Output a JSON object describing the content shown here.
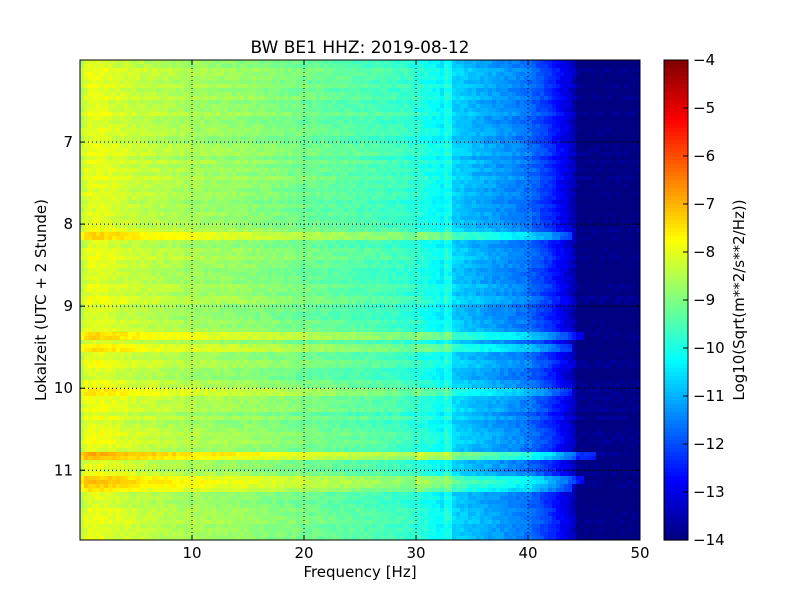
{
  "chart_data": {
    "type": "heatmap",
    "title": "BW BE1 HHZ: 2019-08-12",
    "xlabel": "Frequency [Hz]",
    "ylabel": "Lokalzeit (UTC + 2 Stunde)",
    "xlim": [
      0,
      50
    ],
    "ylim": [
      6.0,
      11.85
    ],
    "y_inverted": true,
    "x_ticks": [
      10,
      20,
      30,
      40,
      50
    ],
    "y_ticks": [
      7,
      8,
      9,
      10,
      11
    ],
    "grid": true,
    "colorbar": {
      "label": "Log10(Sqrt(m**2/s**2/Hz))",
      "range": [
        -14,
        -4
      ],
      "ticks": [
        -4,
        -5,
        -6,
        -7,
        -8,
        -9,
        -10,
        -11,
        -12,
        -13,
        -14
      ],
      "colormap": "jet"
    },
    "spectrum_profile": [
      {
        "f": 0,
        "v": -8.6
      },
      {
        "f": 0.6,
        "v": -8.0
      },
      {
        "f": 2,
        "v": -8.0
      },
      {
        "f": 5,
        "v": -8.3
      },
      {
        "f": 10,
        "v": -8.6
      },
      {
        "f": 15,
        "v": -8.8
      },
      {
        "f": 20,
        "v": -9.1
      },
      {
        "f": 25,
        "v": -9.4
      },
      {
        "f": 28,
        "v": -9.6
      },
      {
        "f": 30,
        "v": -9.8
      },
      {
        "f": 32,
        "v": -10.2
      },
      {
        "f": 33,
        "v": -10.6
      },
      {
        "f": 35,
        "v": -10.9
      },
      {
        "f": 38,
        "v": -11.3
      },
      {
        "f": 40,
        "v": -11.6
      },
      {
        "f": 42,
        "v": -12.3
      },
      {
        "f": 44,
        "v": -13.3
      },
      {
        "f": 44.5,
        "v": -14.0
      },
      {
        "f": 50,
        "v": -14.0
      }
    ],
    "horizontal_features": [
      {
        "time": 8.15,
        "f_max": 44,
        "delta": 1.0
      },
      {
        "time": 9.38,
        "f_max": 45,
        "delta": 0.9
      },
      {
        "time": 9.5,
        "f_max": 44,
        "delta": 0.9
      },
      {
        "time": 10.06,
        "f_max": 44,
        "delta": 0.6
      },
      {
        "time": 10.84,
        "f_max": 46,
        "delta": 1.6
      },
      {
        "time": 11.1,
        "f_max": 45,
        "delta": 1.3
      },
      {
        "time": 11.23,
        "f_max": 44,
        "delta": 1.0
      }
    ],
    "vertical_features": [
      {
        "f": 32.8,
        "delta": 0.5
      }
    ]
  }
}
